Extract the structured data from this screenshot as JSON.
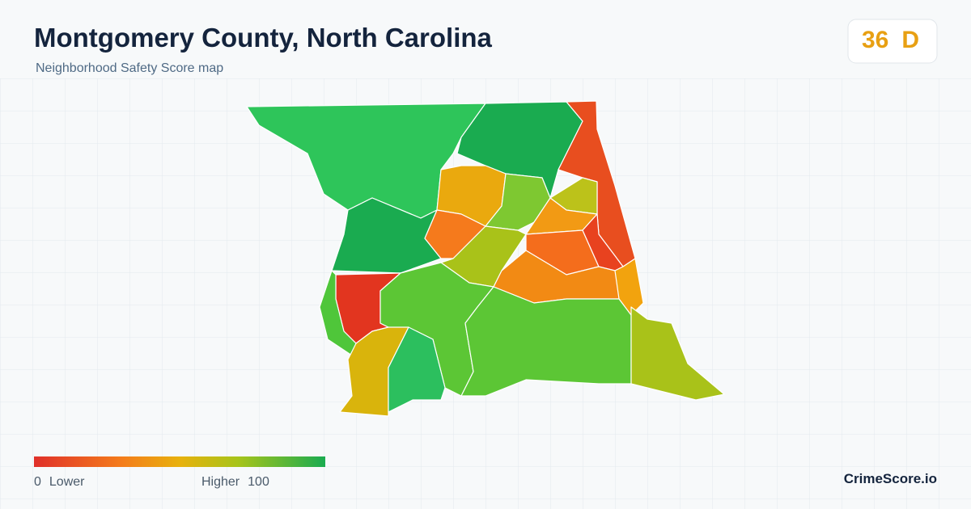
{
  "header": {
    "title": "Montgomery County, North Carolina",
    "subtitle": "Neighborhood Safety Score map"
  },
  "score": {
    "value": 36,
    "grade": "D"
  },
  "legend": {
    "min": 0,
    "min_label": "Lower",
    "max_label": "Higher",
    "max": 100
  },
  "brand": "CrimeScore.io"
}
